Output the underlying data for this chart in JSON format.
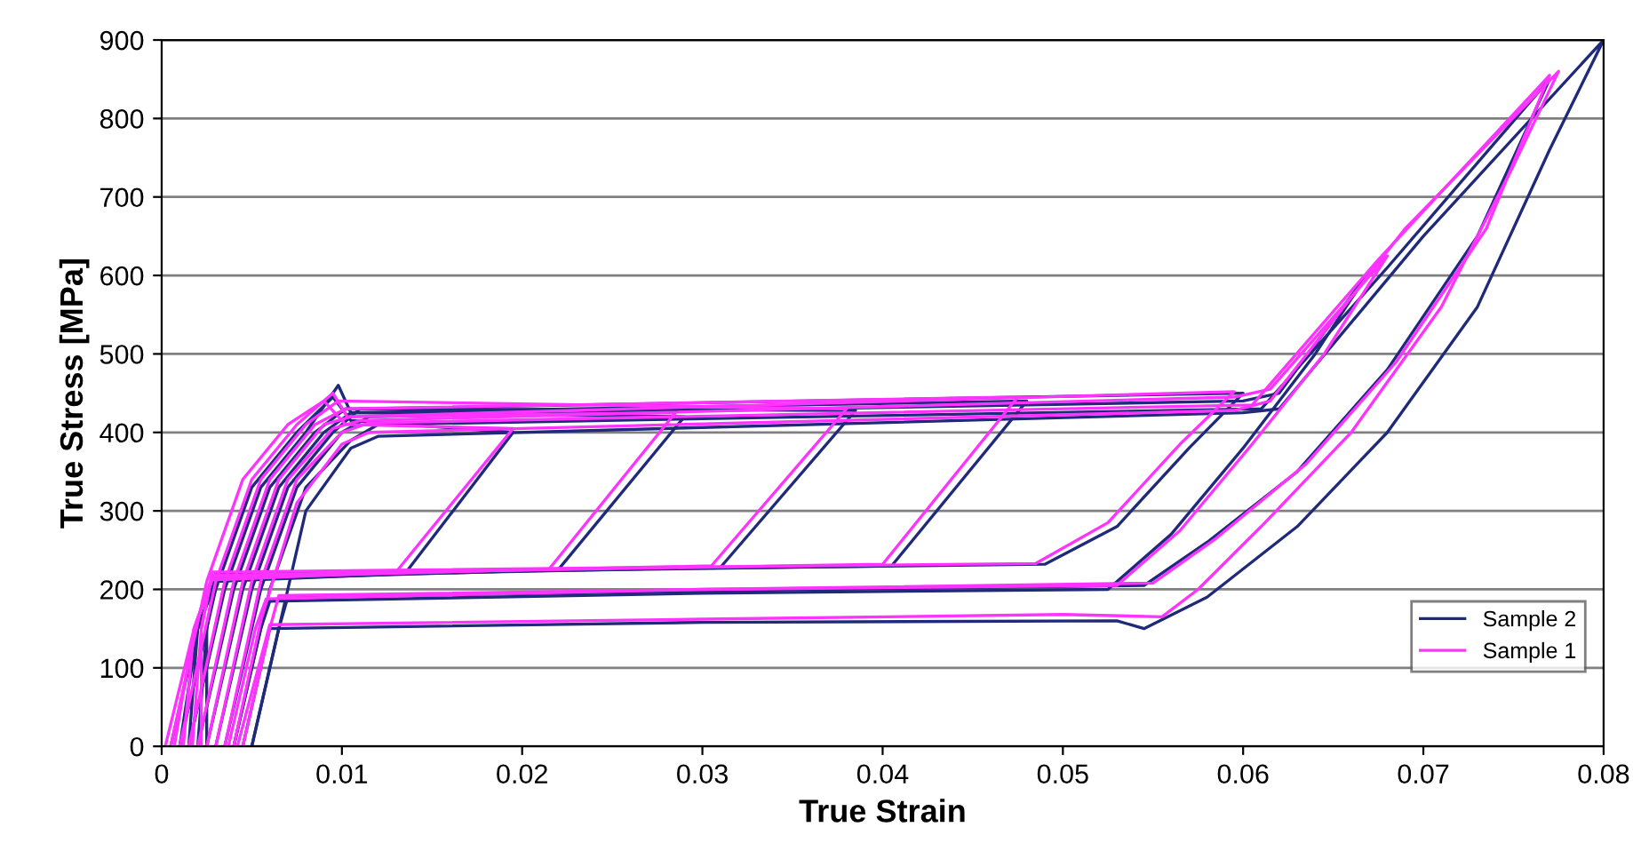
{
  "chart_data": {
    "type": "line",
    "xlabel": "True Strain",
    "ylabel": "True Stress [MPa]",
    "xlim": [
      0,
      0.08
    ],
    "ylim": [
      0,
      900
    ],
    "xticks": [
      0,
      0.01,
      0.02,
      0.03,
      0.04,
      0.05,
      0.06,
      0.07,
      0.08
    ],
    "yticks": [
      0,
      100,
      200,
      300,
      400,
      500,
      600,
      700,
      800,
      900
    ],
    "grid": "y",
    "legend": "bottom right",
    "marker": "none",
    "line_style": "solid",
    "series": [
      {
        "name": "Sample 2",
        "color": "#1f2a7a",
        "x": [
          0.001,
          0.003,
          0.005,
          0.0075,
          0.0095,
          0.0105,
          0.0195,
          0.0135,
          0.003,
          0.002,
          0.0005
        ],
        "values": [
          0,
          200,
          330,
          400,
          445,
          415,
          400,
          220,
          210,
          150,
          0
        ]
      },
      {
        "color": "#1f2a7a",
        "x": [
          0.0015,
          0.0035,
          0.0055,
          0.008,
          0.0098,
          0.0105,
          0.029,
          0.022,
          0.003,
          0.002,
          0.001
        ],
        "values": [
          0,
          200,
          330,
          400,
          460,
          425,
          420,
          225,
          212,
          150,
          0
        ]
      },
      {
        "color": "#1f2a7a",
        "x": [
          0.002,
          0.004,
          0.006,
          0.0085,
          0.0102,
          0.0385,
          0.031,
          0.003,
          0.002,
          0.0015
        ],
        "values": [
          0,
          200,
          330,
          400,
          430,
          428,
          228,
          215,
          150,
          0
        ]
      },
      {
        "color": "#1f2a7a",
        "x": [
          0.0025,
          0.0045,
          0.0065,
          0.009,
          0.0105,
          0.048,
          0.0405,
          0.003,
          0.0025,
          0.002
        ],
        "values": [
          0,
          200,
          330,
          400,
          425,
          440,
          230,
          218,
          150,
          0
        ]
      },
      {
        "color": "#1f2a7a",
        "x": [
          0.003,
          0.005,
          0.007,
          0.0095,
          0.011,
          0.06,
          0.057,
          0.053,
          0.049,
          0.003,
          0.0025,
          0.0025
        ],
        "values": [
          0,
          200,
          330,
          400,
          430,
          450,
          380,
          280,
          232,
          220,
          150,
          0
        ]
      },
      {
        "color": "#1f2a7a",
        "x": [
          0.0035,
          0.0055,
          0.0075,
          0.01,
          0.0115,
          0.06,
          0.062,
          0.067,
          0.064,
          0.06,
          0.056,
          0.0525,
          0.03,
          0.006,
          0.0055,
          0.004
        ],
        "values": [
          0,
          200,
          330,
          400,
          420,
          440,
          450,
          605,
          500,
          380,
          270,
          200,
          195,
          185,
          150,
          0
        ]
      },
      {
        "color": "#1f2a7a",
        "x": [
          0.004,
          0.006,
          0.008,
          0.0105,
          0.012,
          0.061,
          0.068,
          0.077,
          0.073,
          0.068,
          0.063,
          0.058,
          0.0545,
          0.03,
          0.007,
          0.0065,
          0.005
        ],
        "values": [
          0,
          200,
          330,
          390,
          410,
          430,
          610,
          850,
          650,
          480,
          350,
          260,
          205,
          198,
          190,
          150,
          0
        ]
      },
      {
        "color": "#1f2a7a",
        "x": [
          0.005,
          0.0065,
          0.008,
          0.0105,
          0.012,
          0.06,
          0.062,
          0.07,
          0.08,
          0.077,
          0.073,
          0.068,
          0.063,
          0.058,
          0.0545,
          0.053,
          0.03,
          0.006,
          0.0045
        ],
        "values": [
          0,
          150,
          300,
          380,
          395,
          425,
          430,
          650,
          900,
          760,
          560,
          400,
          280,
          190,
          150,
          160,
          158,
          150,
          0
        ]
      },
      {
        "name": "Sample 1",
        "color": "#ff33ff",
        "x": [
          0.0005,
          0.0025,
          0.0045,
          0.007,
          0.009,
          0.0102,
          0.0195,
          0.013,
          0.0028,
          0.0018,
          0.0002
        ],
        "values": [
          0,
          210,
          340,
          410,
          440,
          410,
          405,
          222,
          212,
          150,
          0
        ]
      },
      {
        "color": "#ff33ff",
        "x": [
          0.001,
          0.003,
          0.005,
          0.0075,
          0.0095,
          0.0103,
          0.0285,
          0.0215,
          0.0028,
          0.0018,
          0.0007
        ],
        "values": [
          0,
          210,
          340,
          410,
          450,
          420,
          425,
          226,
          214,
          150,
          0
        ]
      },
      {
        "color": "#ff33ff",
        "x": [
          0.0015,
          0.0035,
          0.0055,
          0.008,
          0.0098,
          0.038,
          0.0305,
          0.0028,
          0.0018,
          0.0012
        ],
        "values": [
          0,
          210,
          340,
          410,
          440,
          430,
          230,
          216,
          150,
          0
        ]
      },
      {
        "color": "#ff33ff",
        "x": [
          0.002,
          0.004,
          0.006,
          0.0085,
          0.0102,
          0.0475,
          0.04,
          0.0028,
          0.0022,
          0.0017
        ],
        "values": [
          0,
          210,
          340,
          410,
          430,
          445,
          232,
          218,
          150,
          0
        ]
      },
      {
        "color": "#ff33ff",
        "x": [
          0.0025,
          0.0045,
          0.0065,
          0.009,
          0.0105,
          0.0595,
          0.0565,
          0.0525,
          0.0485,
          0.0028,
          0.0022,
          0.0022
        ],
        "values": [
          0,
          210,
          340,
          410,
          420,
          452,
          385,
          285,
          233,
          222,
          150,
          0
        ]
      },
      {
        "color": "#ff33ff",
        "x": [
          0.003,
          0.005,
          0.007,
          0.0095,
          0.011,
          0.0595,
          0.0615,
          0.068,
          0.0645,
          0.0605,
          0.0565,
          0.053,
          0.03,
          0.0058,
          0.0052,
          0.0037
        ],
        "values": [
          0,
          210,
          340,
          405,
          415,
          445,
          455,
          625,
          500,
          385,
          275,
          205,
          200,
          188,
          150,
          0
        ]
      },
      {
        "color": "#ff33ff",
        "x": [
          0.0035,
          0.0055,
          0.0075,
          0.01,
          0.0115,
          0.0605,
          0.0675,
          0.077,
          0.0735,
          0.0685,
          0.0635,
          0.0585,
          0.055,
          0.03,
          0.0065,
          0.006,
          0.0045
        ],
        "values": [
          0,
          210,
          340,
          400,
          412,
          435,
          620,
          855,
          660,
          490,
          360,
          265,
          208,
          200,
          192,
          150,
          0
        ]
      },
      {
        "color": "#ff33ff",
        "x": [
          0.004,
          0.0055,
          0.0075,
          0.01,
          0.0115,
          0.0595,
          0.0615,
          0.069,
          0.0775,
          0.075,
          0.071,
          0.066,
          0.061,
          0.0575,
          0.0555,
          0.05,
          0.03,
          0.006,
          0.0042
        ],
        "values": [
          0,
          160,
          310,
          385,
          400,
          428,
          440,
          660,
          860,
          740,
          560,
          400,
          280,
          200,
          165,
          168,
          162,
          155,
          0
        ]
      }
    ]
  }
}
